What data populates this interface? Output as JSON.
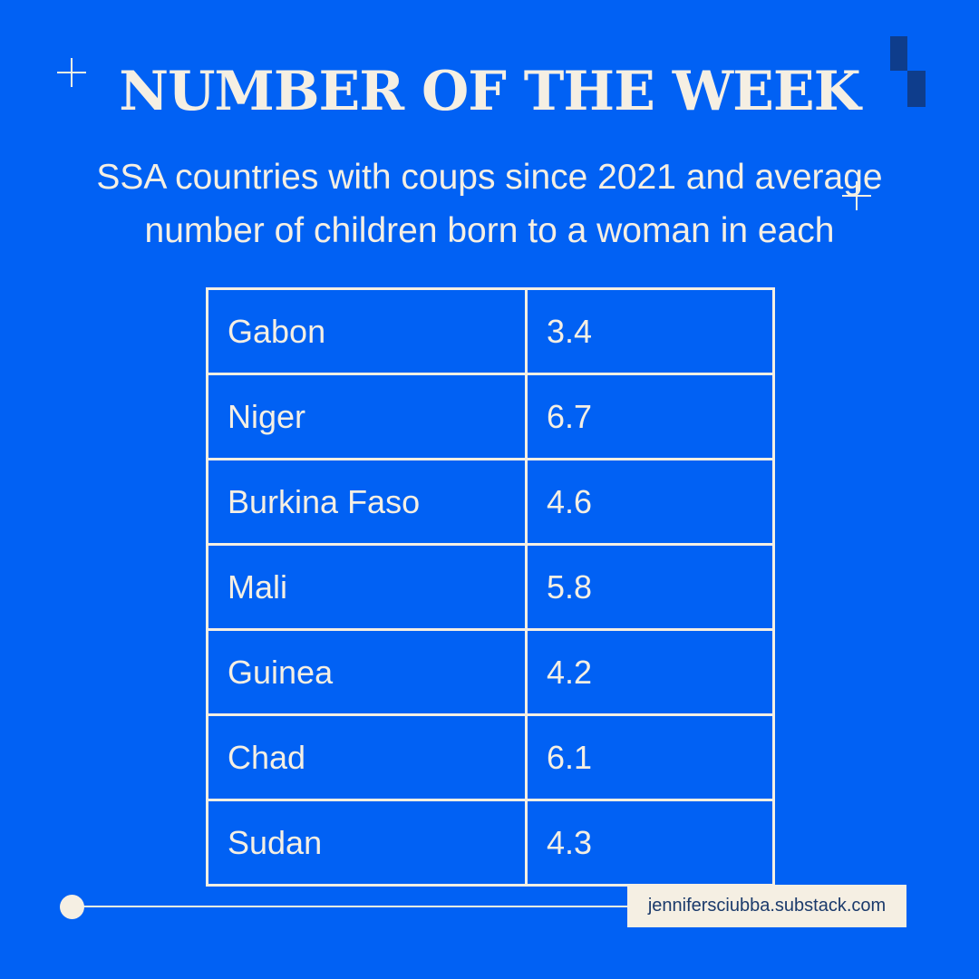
{
  "header": {
    "title": "NUMBER OF THE WEEK",
    "subtitle": "SSA countries with coups since 2021 and average number of children born to a woman in each"
  },
  "table": {
    "rows": [
      {
        "country": "Gabon",
        "value": "3.4"
      },
      {
        "country": "Niger",
        "value": "6.7"
      },
      {
        "country": "Burkina Faso",
        "value": "4.6"
      },
      {
        "country": "Mali",
        "value": "5.8"
      },
      {
        "country": "Guinea",
        "value": "4.2"
      },
      {
        "country": "Chad",
        "value": "6.1"
      },
      {
        "country": "Sudan",
        "value": "4.3"
      }
    ]
  },
  "footer": {
    "source": "jennifersciubba.substack.com"
  },
  "colors": {
    "background": "#0161f4",
    "text": "#f5efe3",
    "accent_block": "#0e3d8c"
  },
  "icons": [
    "plus-icon",
    "plus-icon"
  ]
}
